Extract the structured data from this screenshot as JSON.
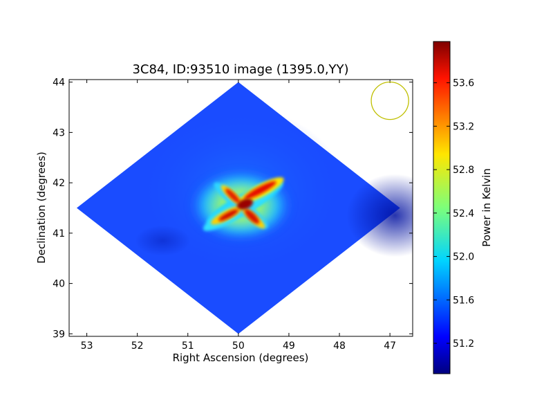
{
  "chart_data": {
    "type": "heatmap",
    "title": "3C84, ID:93510 image (1395.0,YY)",
    "xlabel": "Right Ascension (degrees)",
    "ylabel": "Declination (degrees)",
    "xlim": [
      53.35,
      46.55
    ],
    "ylim": [
      38.95,
      44.05
    ],
    "x_ticks": [
      53,
      52,
      51,
      50,
      49,
      48,
      47
    ],
    "y_ticks": [
      39,
      40,
      41,
      42,
      43,
      44
    ],
    "grid": false,
    "coverage_corners": [
      [
        50.0,
        44.0
      ],
      [
        46.8,
        41.5
      ],
      [
        50.0,
        39.0
      ],
      [
        53.2,
        41.5
      ]
    ],
    "background_level": 51.3,
    "source_center": [
      49.95,
      41.55
    ],
    "peak_level": 53.9,
    "beam_marker": {
      "ra": 47.0,
      "dec": 43.63,
      "radius_deg": 0.37,
      "color": "#bfbf00"
    },
    "colorbar": {
      "label": "Power in Kelvin",
      "range": [
        50.92,
        53.98
      ],
      "ticks": [
        "51.2",
        "51.6",
        "52.0",
        "52.4",
        "52.8",
        "53.2",
        "53.6"
      ],
      "colormap": "jet"
    }
  }
}
